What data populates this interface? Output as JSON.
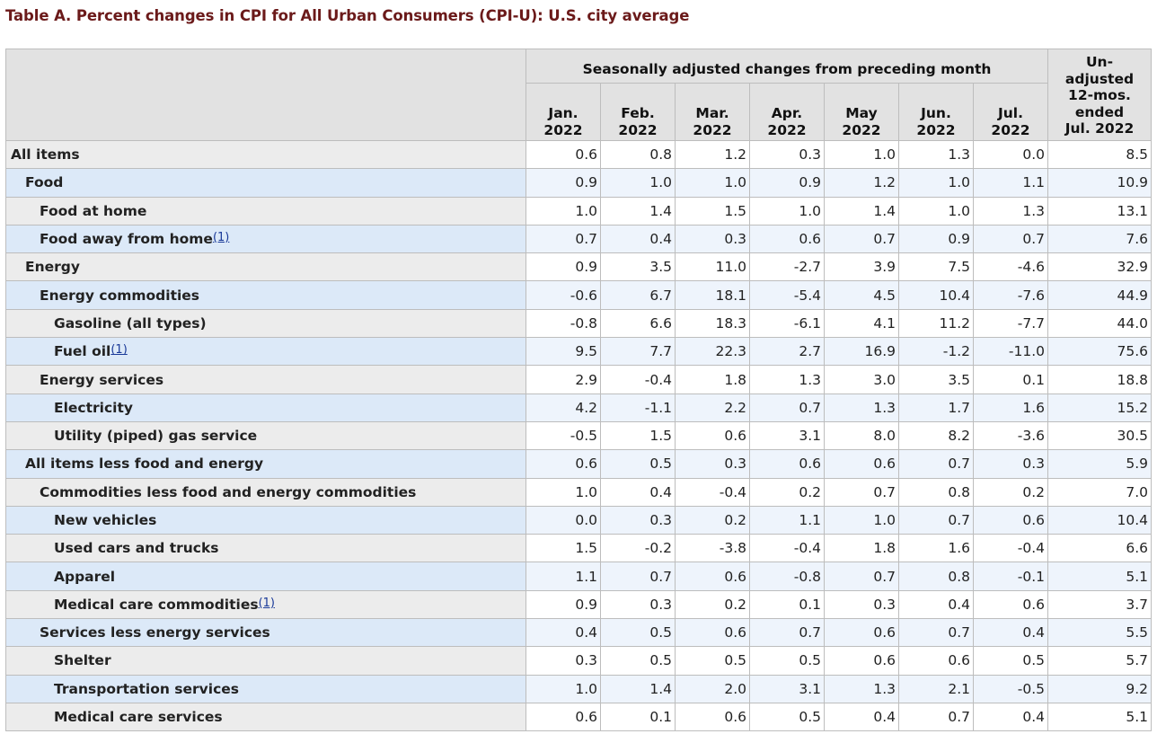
{
  "title": "Table A. Percent changes in CPI for All Urban Consumers (CPI-U): U.S. city average",
  "header": {
    "group_label": "Seasonally adjusted changes from preceding month",
    "unadjusted": [
      "Un-",
      "adjusted",
      "12-mos.",
      "ended",
      "Jul. 2022"
    ],
    "months": [
      [
        "Jan.",
        "2022"
      ],
      [
        "Feb.",
        "2022"
      ],
      [
        "Mar.",
        "2022"
      ],
      [
        "Apr.",
        "2022"
      ],
      [
        "May",
        "2022"
      ],
      [
        "Jun.",
        "2022"
      ],
      [
        "Jul.",
        "2022"
      ]
    ]
  },
  "rows": [
    {
      "label": "All items",
      "footnote": "",
      "values": [
        "0.6",
        "0.8",
        "1.2",
        "0.3",
        "1.0",
        "1.3",
        "0.0",
        "8.5"
      ]
    },
    {
      "label": "Food",
      "footnote": "",
      "values": [
        "0.9",
        "1.0",
        "1.0",
        "0.9",
        "1.2",
        "1.0",
        "1.1",
        "10.9"
      ]
    },
    {
      "label": "Food at home",
      "footnote": "",
      "values": [
        "1.0",
        "1.4",
        "1.5",
        "1.0",
        "1.4",
        "1.0",
        "1.3",
        "13.1"
      ]
    },
    {
      "label": "Food away from home",
      "footnote": "(1)",
      "values": [
        "0.7",
        "0.4",
        "0.3",
        "0.6",
        "0.7",
        "0.9",
        "0.7",
        "7.6"
      ]
    },
    {
      "label": "Energy",
      "footnote": "",
      "values": [
        "0.9",
        "3.5",
        "11.0",
        "-2.7",
        "3.9",
        "7.5",
        "-4.6",
        "32.9"
      ]
    },
    {
      "label": "Energy commodities",
      "footnote": "",
      "values": [
        "-0.6",
        "6.7",
        "18.1",
        "-5.4",
        "4.5",
        "10.4",
        "-7.6",
        "44.9"
      ]
    },
    {
      "label": "Gasoline (all types)",
      "footnote": "",
      "values": [
        "-0.8",
        "6.6",
        "18.3",
        "-6.1",
        "4.1",
        "11.2",
        "-7.7",
        "44.0"
      ]
    },
    {
      "label": "Fuel oil",
      "footnote": "(1)",
      "values": [
        "9.5",
        "7.7",
        "22.3",
        "2.7",
        "16.9",
        "-1.2",
        "-11.0",
        "75.6"
      ]
    },
    {
      "label": "Energy services",
      "footnote": "",
      "values": [
        "2.9",
        "-0.4",
        "1.8",
        "1.3",
        "3.0",
        "3.5",
        "0.1",
        "18.8"
      ]
    },
    {
      "label": "Electricity",
      "footnote": "",
      "values": [
        "4.2",
        "-1.1",
        "2.2",
        "0.7",
        "1.3",
        "1.7",
        "1.6",
        "15.2"
      ]
    },
    {
      "label": "Utility (piped) gas service",
      "footnote": "",
      "values": [
        "-0.5",
        "1.5",
        "0.6",
        "3.1",
        "8.0",
        "8.2",
        "-3.6",
        "30.5"
      ]
    },
    {
      "label": "All items less food and energy",
      "footnote": "",
      "values": [
        "0.6",
        "0.5",
        "0.3",
        "0.6",
        "0.6",
        "0.7",
        "0.3",
        "5.9"
      ]
    },
    {
      "label": "Commodities less food and energy commodities",
      "footnote": "",
      "values": [
        "1.0",
        "0.4",
        "-0.4",
        "0.2",
        "0.7",
        "0.8",
        "0.2",
        "7.0"
      ]
    },
    {
      "label": "New vehicles",
      "footnote": "",
      "values": [
        "0.0",
        "0.3",
        "0.2",
        "1.1",
        "1.0",
        "0.7",
        "0.6",
        "10.4"
      ]
    },
    {
      "label": "Used cars and trucks",
      "footnote": "",
      "values": [
        "1.5",
        "-0.2",
        "-3.8",
        "-0.4",
        "1.8",
        "1.6",
        "-0.4",
        "6.6"
      ]
    },
    {
      "label": "Apparel",
      "footnote": "",
      "values": [
        "1.1",
        "0.7",
        "0.6",
        "-0.8",
        "0.7",
        "0.8",
        "-0.1",
        "5.1"
      ]
    },
    {
      "label": "Medical care commodities",
      "footnote": "(1)",
      "values": [
        "0.9",
        "0.3",
        "0.2",
        "0.1",
        "0.3",
        "0.4",
        "0.6",
        "3.7"
      ]
    },
    {
      "label": "Services less energy services",
      "footnote": "",
      "values": [
        "0.4",
        "0.5",
        "0.6",
        "0.7",
        "0.6",
        "0.7",
        "0.4",
        "5.5"
      ]
    },
    {
      "label": "Shelter",
      "footnote": "",
      "values": [
        "0.3",
        "0.5",
        "0.5",
        "0.5",
        "0.6",
        "0.6",
        "0.5",
        "5.7"
      ]
    },
    {
      "label": "Transportation services",
      "footnote": "",
      "values": [
        "1.0",
        "1.4",
        "2.0",
        "3.1",
        "1.3",
        "2.1",
        "-0.5",
        "9.2"
      ]
    },
    {
      "label": "Medical care services",
      "footnote": "",
      "values": [
        "0.6",
        "0.1",
        "0.6",
        "0.5",
        "0.4",
        "0.7",
        "0.4",
        "5.1"
      ]
    }
  ]
}
